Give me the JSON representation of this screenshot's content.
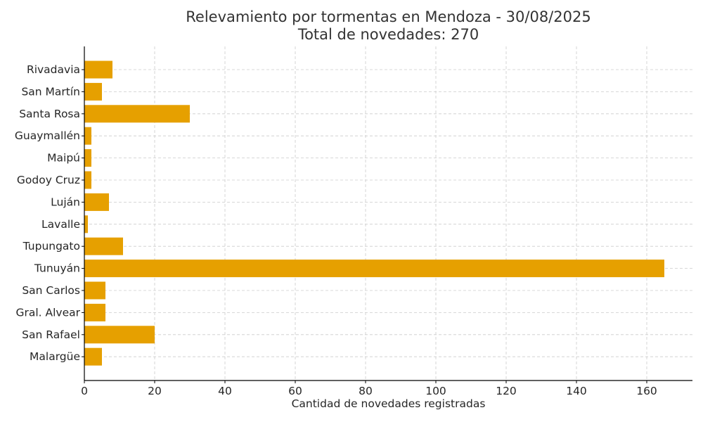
{
  "chart_data": {
    "type": "bar",
    "orientation": "horizontal",
    "title": "Relevamiento por tormentas en Mendoza - 30/08/2025",
    "subtitle": "Total de novedades: 270",
    "xlabel": "Cantidad de novedades registradas",
    "ylabel": "",
    "categories": [
      "Rivadavia",
      "San Martín",
      "Santa Rosa",
      "Guaymallén",
      "Maipú",
      "Godoy Cruz",
      "Luján",
      "Lavalle",
      "Tupungato",
      "Tunuyán",
      "San Carlos",
      "Gral. Alvear",
      "San Rafael",
      "Malargüe"
    ],
    "values": [
      8,
      5,
      30,
      2,
      2,
      2,
      7,
      1,
      11,
      165,
      6,
      6,
      20,
      5
    ],
    "xlim": [
      0,
      173
    ],
    "xticks": [
      0,
      20,
      40,
      60,
      80,
      100,
      120,
      140,
      160
    ],
    "grid": true,
    "bar_color": "#E6A000",
    "legend": null
  }
}
